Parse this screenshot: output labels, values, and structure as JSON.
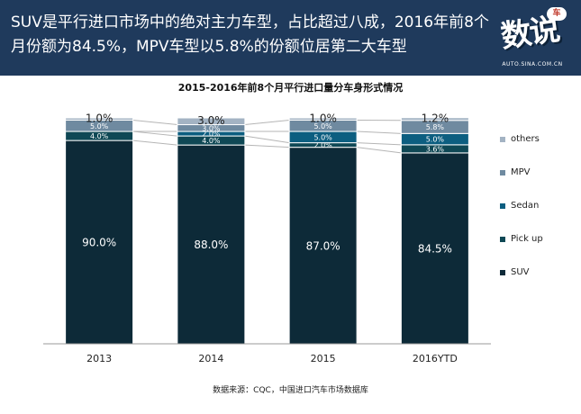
{
  "header": {
    "title": "SUV是平行进口市场中的绝对主力车型，占比超过八成，2016年前8个月份额为84.5%，MPV车型以5.8%的份额位居第二大车型",
    "logo_text": "数说",
    "logo_bubble": "车",
    "logo_url": "AUTO.SINA.COM.CN"
  },
  "source": "数据来源：CQC，中国进口汽车市场数据库",
  "chart_data": {
    "type": "bar",
    "stacked": true,
    "title": "2015-2016年前8个月平行进口量分车身形式情况",
    "categories": [
      "2013",
      "2014",
      "2015",
      "2016YTD"
    ],
    "ylim": [
      0,
      100
    ],
    "grid": false,
    "legend_position": "right",
    "series": [
      {
        "name": "SUV",
        "color": "#0d2a38",
        "values": [
          90.0,
          88.0,
          87.0,
          84.5
        ],
        "labels": [
          "90.0%",
          "88.0%",
          "87.0%",
          "84.5%"
        ]
      },
      {
        "name": "Pick up",
        "color": "#0f4855",
        "values": [
          4.0,
          4.0,
          2.0,
          3.6
        ],
        "labels": [
          "4.0%",
          "4.0%",
          "2.0%",
          "3.6%"
        ]
      },
      {
        "name": "Sedan",
        "color": "#0c5e80",
        "values": [
          0.0,
          2.0,
          5.0,
          5.0
        ],
        "labels": [
          "",
          "2.0%",
          "5.0%",
          "5.0%"
        ]
      },
      {
        "name": "MPV",
        "color": "#6f8aa0",
        "values": [
          5.0,
          3.0,
          5.0,
          5.8
        ],
        "labels": [
          "5.0%",
          "3.0%",
          "5.0%",
          "5.8%"
        ]
      },
      {
        "name": "others",
        "color": "#a3b3c3",
        "values": [
          1.0,
          3.0,
          1.0,
          1.2
        ],
        "labels": [
          "1.0%",
          "3.0%",
          "1.0%",
          "1.2%"
        ]
      }
    ]
  }
}
